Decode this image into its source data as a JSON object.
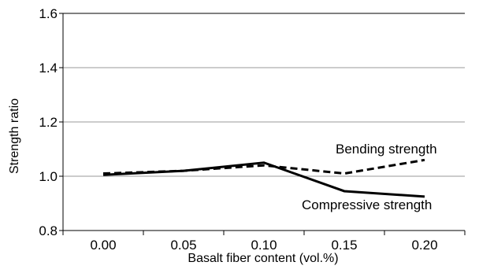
{
  "chart_data": {
    "type": "line",
    "title": "",
    "xlabel": "Basalt fiber content (vol.%)",
    "ylabel": "Strength ratio",
    "categories": [
      "0.00",
      "0.05",
      "0.10",
      "0.15",
      "0.20"
    ],
    "x": [
      0.0,
      0.05,
      0.1,
      0.15,
      0.2
    ],
    "yticks": [
      "0.8",
      "1.0",
      "1.2",
      "1.4",
      "1.6"
    ],
    "ylim": [
      0.8,
      1.6
    ],
    "grid": true,
    "legend": "none",
    "series": [
      {
        "name": "Compressive strength",
        "values": [
          1.005,
          1.02,
          1.05,
          0.945,
          0.925
        ],
        "line_style": "solid",
        "color": "#000000"
      },
      {
        "name": "Bending strength",
        "values": [
          1.01,
          1.02,
          1.04,
          1.01,
          1.06
        ],
        "line_style": "dashed",
        "color": "#000000"
      }
    ],
    "annotations": [
      {
        "text": "Bending strength",
        "series": "Bending strength"
      },
      {
        "text": "Compressive strength",
        "series": "Compressive strength"
      }
    ]
  },
  "colors": {
    "gridline": "#999999",
    "axis": "#000000",
    "line": "#000000"
  }
}
